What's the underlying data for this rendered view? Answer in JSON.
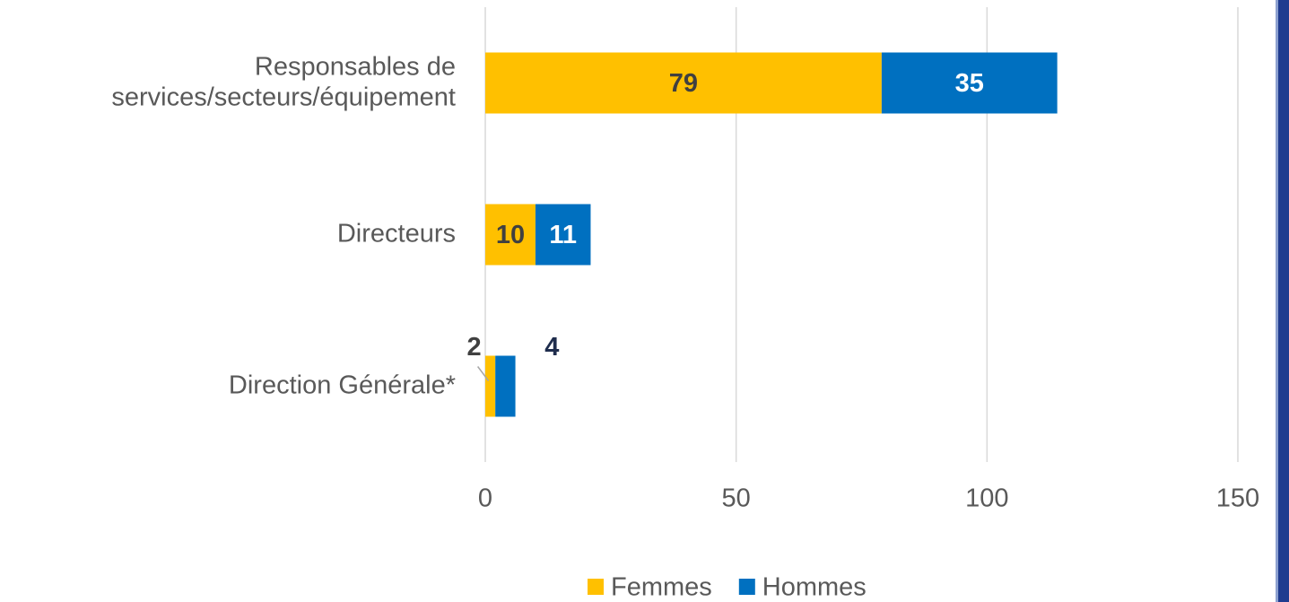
{
  "chart_data": {
    "type": "stacked_barh",
    "categories": [
      "Responsables de\nservices/secteurs/équipement",
      "Directeurs",
      "Direction Générale*"
    ],
    "series": [
      {
        "name": "Femmes",
        "color": "#FFC000",
        "values": [
          79,
          10,
          2
        ]
      },
      {
        "name": "Hommes",
        "color": "#0070C0",
        "values": [
          35,
          11,
          4
        ]
      }
    ],
    "xlim": [
      0,
      150
    ],
    "xticks": [
      0,
      50,
      100,
      150
    ],
    "grid": true,
    "legend": "bottom"
  }
}
